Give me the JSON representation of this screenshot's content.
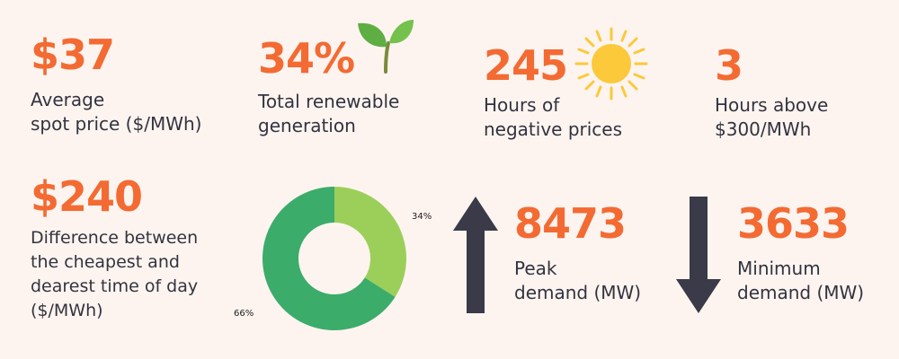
{
  "stats": {
    "spot_price": {
      "value": "$37",
      "label_line1": "Average",
      "label_line2": "spot price ($/MWh)"
    },
    "renewable": {
      "value": "34%",
      "label_line1": "Total renewable",
      "label_line2": "generation"
    },
    "negative_hours": {
      "value": "245",
      "label_line1": "Hours of",
      "label_line2": "negative prices"
    },
    "hours_above": {
      "value": "3",
      "label_line1": "Hours above",
      "label_line2": "$300/MWh"
    },
    "price_difference": {
      "value": "$240",
      "label_line1": "Difference between",
      "label_line2": "the cheapest and",
      "label_line3": "dearest time of day",
      "label_line4": "($/MWh)"
    },
    "peak_demand": {
      "value": "8473",
      "label_line1": "Peak",
      "label_line2": "demand (MW)"
    },
    "minimum_demand": {
      "value": "3633",
      "label_line1": "Minimum",
      "label_line2": "demand (MW)"
    }
  },
  "chart_data": {
    "type": "pie",
    "labels": [
      "34%",
      "66%"
    ],
    "values": [
      34,
      66
    ],
    "colors": [
      "#9ccf59",
      "#3bac6a"
    ],
    "title": "",
    "hole": true
  },
  "icons": {
    "plant": "sprout-icon",
    "sun": "sun-icon",
    "up_arrow": "arrow-up-icon",
    "down_arrow": "arrow-down-icon"
  },
  "colors": {
    "accent": "#f36b32",
    "text": "#33333f",
    "background": "#fdf4f0",
    "arrow": "#3a3a48",
    "sun": "#fbc93a"
  }
}
